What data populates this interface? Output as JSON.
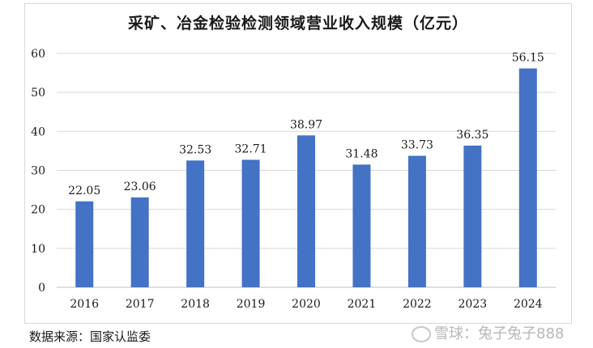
{
  "chart_data": {
    "type": "bar",
    "title": "采矿、冶金检验检测领域营业收入规模（亿元）",
    "categories": [
      "2016",
      "2017",
      "2018",
      "2019",
      "2020",
      "2021",
      "2022",
      "2023",
      "2024"
    ],
    "values": [
      22.05,
      23.06,
      32.53,
      32.71,
      38.97,
      31.48,
      33.73,
      36.35,
      56.15
    ],
    "value_labels": [
      "22.05",
      "23.06",
      "32.53",
      "32.71",
      "38.97",
      "31.48",
      "33.73",
      "36.35",
      "56.15"
    ],
    "yticks": [
      "0",
      "10",
      "20",
      "30",
      "40",
      "50",
      "60"
    ],
    "ylim": [
      0,
      60
    ],
    "grid": true,
    "legend": "none",
    "bar_color": "#4472c4",
    "grid_color": "#d9d9d9"
  },
  "footer": {
    "source": "数据来源：国家认监委",
    "watermark": "雪球：兔子兔子888"
  }
}
